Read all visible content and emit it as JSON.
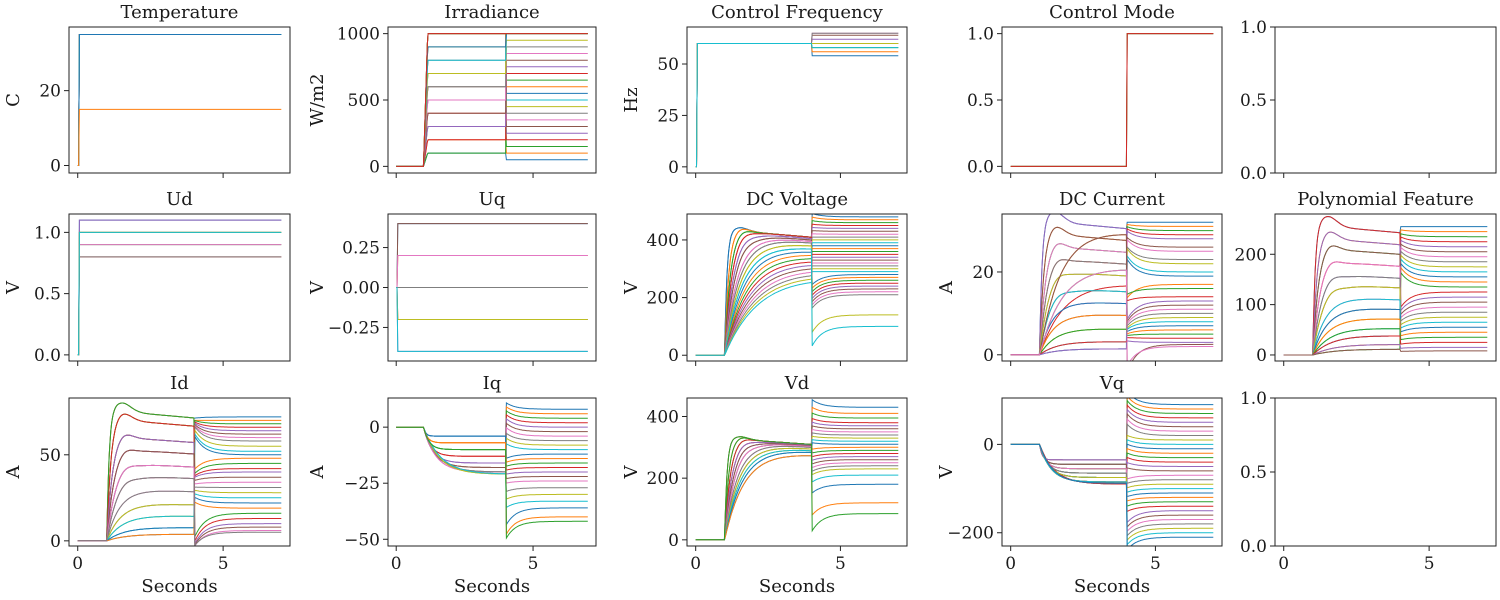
{
  "chart_data": {
    "type": "line",
    "xlabel": "Seconds",
    "x_ticks": [
      0,
      5
    ],
    "xlim": [
      -0.3,
      7.3
    ],
    "x_range": [
      0,
      7
    ],
    "palette": [
      "#1f77b4",
      "#ff7f0e",
      "#2ca02c",
      "#d62728",
      "#9467bd",
      "#8c564b",
      "#e377c2",
      "#7f7f7f",
      "#bcbd22",
      "#17becf"
    ],
    "panels": [
      {
        "title": "Temperature",
        "ylabel": "C",
        "ylim": [
          -2,
          37
        ],
        "yticks": [
          0,
          20
        ],
        "ytick_labels": [
          "0",
          "20"
        ],
        "kind": "step",
        "t0": 0,
        "v0": 0,
        "t1": 4,
        "finals": [
          35,
          35,
          35,
          35,
          35,
          35,
          35,
          35,
          35,
          35,
          35,
          15
        ]
      },
      {
        "title": "Irradiance",
        "ylabel": "W/m2",
        "ylim": [
          -50,
          1050
        ],
        "yticks": [
          0,
          500,
          1000
        ],
        "ytick_labels": [
          "0",
          "500",
          "1000"
        ],
        "kind": "two_step",
        "t0": 1.0,
        "ramp": 0.15,
        "t1": 4,
        "levels": [
          100,
          200,
          300,
          400,
          500,
          600,
          700,
          800,
          900,
          1000,
          1000,
          1000,
          100,
          200,
          300,
          400,
          500,
          600,
          700,
          800,
          900,
          1000,
          1000,
          1000
        ],
        "finals": [
          50,
          100,
          150,
          200,
          250,
          300,
          350,
          400,
          450,
          500,
          550,
          600,
          650,
          700,
          750,
          800,
          850,
          900,
          950,
          1000,
          1000,
          1000,
          1000,
          1000
        ]
      },
      {
        "title": "Control Frequency",
        "ylabel": "Hz",
        "ylim": [
          -3,
          68
        ],
        "yticks": [
          0,
          25,
          50
        ],
        "ytick_labels": [
          "0",
          "25",
          "50"
        ],
        "kind": "freq",
        "t0": 0,
        "t1": 4,
        "finals": [
          54,
          56,
          58,
          60,
          62,
          64,
          65,
          65,
          60,
          58
        ]
      },
      {
        "title": "Control Mode",
        "ylabel": "",
        "ylim": [
          -0.05,
          1.05
        ],
        "yticks": [
          0.0,
          0.5,
          1.0
        ],
        "ytick_labels": [
          "0.0",
          "0.5",
          "1.0"
        ],
        "kind": "mode",
        "t1": 4,
        "finals": [
          1,
          1,
          1,
          1
        ]
      },
      {
        "title": "",
        "ylabel": "",
        "ylim": [
          0,
          1
        ],
        "yticks": [
          0.0,
          0.5,
          1.0
        ],
        "ytick_labels": [
          "0.0",
          "0.5",
          "1.0"
        ],
        "kind": "empty",
        "xlim": [
          -0.3,
          7.3
        ],
        "x_ticks": [
          0,
          5
        ]
      },
      {
        "title": "Ud",
        "ylabel": "V",
        "ylim": [
          -0.05,
          1.15
        ],
        "yticks": [
          0.0,
          0.5,
          1.0
        ],
        "ytick_labels": [
          "0.0",
          "0.5",
          "1.0"
        ],
        "kind": "step",
        "t0": 0,
        "v0": 0,
        "t1": 4,
        "finals": [
          1.1,
          1.0,
          0.9,
          0.8,
          1.1,
          1.0,
          0.9,
          0.8,
          1.0,
          1.0
        ]
      },
      {
        "title": "Uq",
        "ylabel": "V",
        "ylim": [
          -0.46,
          0.46
        ],
        "yticks": [
          -0.25,
          0.0,
          0.25
        ],
        "ytick_labels": [
          "−0.25",
          "0.00",
          "0.25"
        ],
        "kind": "step",
        "t0": 0,
        "v0": 0,
        "t1": 4,
        "finals": [
          0.4,
          0.2,
          0,
          -0.2,
          -0.4,
          0.4,
          0.2,
          0,
          -0.2,
          -0.4
        ]
      },
      {
        "title": "DC Voltage",
        "ylabel": "V",
        "ylim": [
          -20,
          490
        ],
        "yticks": [
          0,
          200,
          400
        ],
        "ytick_labels": [
          "0",
          "200",
          "400"
        ],
        "kind": "response",
        "t0": 1.0,
        "t1": 4,
        "overshoot": 1.03,
        "pre": [
          430,
          430,
          430,
          430,
          425,
          420,
          415,
          410,
          400,
          390,
          380,
          370,
          360,
          350,
          340,
          330,
          320,
          310,
          300,
          290
        ],
        "finals": [
          480,
          470,
          460,
          450,
          440,
          430,
          420,
          410,
          400,
          390,
          380,
          370,
          360,
          350,
          340,
          330,
          320,
          310,
          300,
          290,
          280,
          270,
          260,
          250,
          240,
          230,
          220,
          210,
          140,
          100
        ]
      },
      {
        "title": "DC Current",
        "ylabel": "A",
        "ylim": [
          -1.5,
          34
        ],
        "yticks": [
          0,
          20
        ],
        "ytick_labels": [
          "0",
          "20"
        ],
        "kind": "response",
        "t0": 1.0,
        "t1": 4,
        "overshoot": 1.08,
        "pre": [
          32,
          29,
          26,
          23,
          20,
          16,
          13,
          10,
          6.5,
          3.3,
          1.5,
          31,
          22,
          18
        ],
        "finals": [
          32,
          31,
          30,
          29,
          28,
          26,
          25,
          23,
          22,
          20,
          19,
          17,
          16,
          14,
          13,
          12,
          11,
          10,
          9,
          8,
          7,
          6,
          5,
          4,
          3,
          2.5,
          2
        ]
      },
      {
        "title": "Polynomial Feature",
        "ylabel": "",
        "ylim": [
          -12,
          280
        ],
        "yticks": [
          0,
          100,
          200
        ],
        "ytick_labels": [
          "0",
          "100",
          "200"
        ],
        "kind": "response",
        "t0": 1.0,
        "t1": 4,
        "overshoot": 1.08,
        "pre": [
          255,
          230,
          210,
          185,
          160,
          140,
          115,
          95,
          75,
          55,
          40,
          22,
          12
        ],
        "finals": [
          255,
          245,
          235,
          225,
          215,
          205,
          195,
          185,
          175,
          165,
          155,
          145,
          135,
          125,
          115,
          105,
          95,
          85,
          75,
          65,
          55,
          45,
          35,
          25,
          15,
          8
        ]
      },
      {
        "title": "Id",
        "ylabel": "A",
        "ylim": [
          -3,
          83
        ],
        "yticks": [
          0,
          50
        ],
        "ytick_labels": [
          "0",
          "50"
        ],
        "kind": "response",
        "t0": 1.0,
        "t1": 4,
        "overshoot": 1.07,
        "pre": [
          75,
          70,
          60,
          53,
          45,
          38,
          30,
          22,
          15,
          8,
          4
        ],
        "finals": [
          72,
          70,
          68,
          66,
          64,
          62,
          60,
          58,
          55,
          52,
          50,
          48,
          45,
          42,
          40,
          37,
          34,
          31,
          28,
          25,
          22,
          19,
          16,
          13,
          10,
          8,
          6,
          5
        ]
      },
      {
        "title": "Iq",
        "ylabel": "A",
        "ylim": [
          -53,
          13
        ],
        "yticks": [
          -50,
          -25,
          0
        ],
        "ytick_labels": [
          "−50",
          "−25",
          "0"
        ],
        "kind": "response_neg",
        "t0": 1.0,
        "t1": 4,
        "pre": [
          -4,
          -7,
          -10,
          -13,
          -16,
          -18,
          -20,
          -20,
          -21,
          -21
        ],
        "finals": [
          8,
          6,
          4,
          2,
          0,
          -2,
          -4,
          -6,
          -8,
          -10,
          -12,
          -14,
          -16,
          -18,
          -20,
          -22,
          -24,
          -27,
          -30,
          -33,
          -36,
          -40,
          -42
        ]
      },
      {
        "title": "Vd",
        "ylabel": "V",
        "ylim": [
          -20,
          460
        ],
        "yticks": [
          0,
          200,
          400
        ],
        "ytick_labels": [
          "0",
          "200",
          "400"
        ],
        "kind": "response",
        "t0": 1.0,
        "t1": 4,
        "overshoot": 1.03,
        "pre": [
          325,
          325,
          325,
          322,
          320,
          318,
          315,
          310,
          305,
          300,
          290
        ],
        "finals": [
          430,
          410,
          395,
          380,
          370,
          360,
          350,
          340,
          330,
          320,
          310,
          300,
          290,
          280,
          270,
          260,
          250,
          240,
          230,
          210,
          180,
          120,
          85
        ]
      },
      {
        "title": "Vq",
        "ylabel": "V",
        "ylim": [
          -230,
          105
        ],
        "yticks": [
          -200,
          0
        ],
        "ytick_labels": [
          "−200",
          "0"
        ],
        "kind": "response_neg",
        "t0": 1.0,
        "t1": 4,
        "pre": [
          -35,
          -45,
          -55,
          -65,
          -75,
          -85,
          -88,
          -90
        ],
        "finals": [
          90,
          80,
          70,
          60,
          50,
          40,
          30,
          20,
          10,
          0,
          -10,
          -20,
          -30,
          -40,
          -50,
          -60,
          -70,
          -80,
          -90,
          -100,
          -110,
          -120,
          -130,
          -140,
          -150,
          -160,
          -170,
          -180,
          -190,
          -200,
          -210
        ]
      },
      {
        "title": "",
        "ylabel": "",
        "ylim": [
          0,
          1
        ],
        "yticks": [
          0.0,
          0.5,
          1.0
        ],
        "ytick_labels": [
          "0.0",
          "0.5",
          "1.0"
        ],
        "kind": "empty",
        "xlim": [
          -0.3,
          7.3
        ],
        "x_ticks": [
          0,
          5
        ]
      }
    ]
  }
}
